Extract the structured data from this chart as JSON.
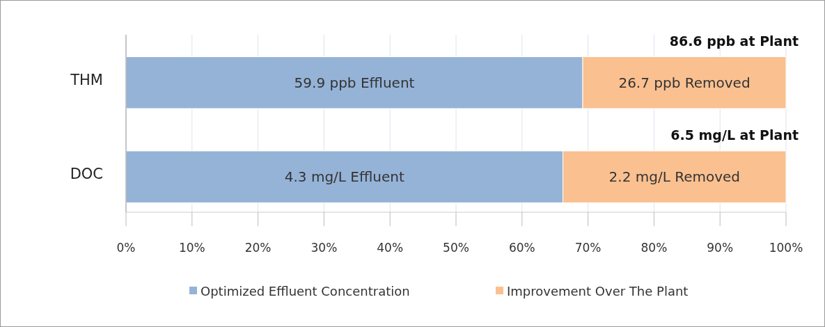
{
  "chart_data": {
    "type": "bar",
    "orientation": "horizontal",
    "stacked": true,
    "categories": [
      "THM",
      "DOC"
    ],
    "series": [
      {
        "name": "Optimized Effluent Concentration",
        "color": "#95b3d7",
        "values": [
          69.2,
          66.2
        ]
      },
      {
        "name": "Improvement Over The Plant",
        "color": "#fac090",
        "values": [
          30.8,
          33.8
        ]
      }
    ],
    "annotations": [
      "59.9 ppb Effluent",
      "26.7 ppb Removed",
      {
        "text": "86.6 ppb at Plant",
        "x": 100,
        "y": "THM"
      },
      "4.3 mg/L Effluent",
      "2.2 mg/L Removed",
      {
        "text": "6.5 mg/L at Plant",
        "x": 100,
        "y": "DOC"
      }
    ],
    "xlim": [
      0,
      100
    ],
    "xticks": [
      {
        "value": 0,
        "label": "0%"
      },
      {
        "value": 10,
        "label": "10%"
      },
      {
        "value": 20,
        "label": "20%"
      },
      {
        "value": 30,
        "label": "30%"
      },
      {
        "value": 40,
        "label": "40%"
      },
      {
        "value": 50,
        "label": "50%"
      },
      {
        "value": 60,
        "label": "60%"
      },
      {
        "value": 70,
        "label": "70%"
      },
      {
        "value": 80,
        "label": "80%"
      },
      {
        "value": 90,
        "label": "90%"
      },
      {
        "value": 100,
        "label": "100%"
      }
    ],
    "grid": "x",
    "legend": "bottom"
  }
}
